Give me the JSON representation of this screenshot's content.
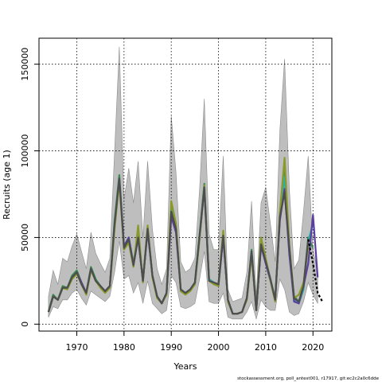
{
  "chart_data": {
    "type": "line",
    "xlabel": "Years",
    "ylabel": "Recruits (age 1)",
    "xlim": [
      1962,
      2024
    ],
    "ylim": [
      -4000,
      165000
    ],
    "x_ticks": [
      1970,
      1980,
      1990,
      2000,
      2010,
      2020
    ],
    "x_tick_labels": [
      "1970",
      "1980",
      "1990",
      "2000",
      "2010",
      "2020"
    ],
    "y_ticks": [
      0,
      50000,
      100000,
      150000
    ],
    "y_tick_labels": [
      "0",
      "50000",
      "100000",
      "150000"
    ],
    "grid": true,
    "grid_style": "dotted",
    "legend": "none",
    "footer": "stockassessment.org, poll_antest001, r17917, git:ec2c2a0c6dde",
    "colors": {
      "band": "#bebebe",
      "band_edge": "#8c8c8c",
      "series": [
        "#3a8c4e",
        "#2ab0a8",
        "#5a3fa0",
        "#8a9a2a",
        "#4d4d4d"
      ]
    },
    "years": [
      1964,
      1965,
      1966,
      1967,
      1968,
      1969,
      1970,
      1971,
      1972,
      1973,
      1974,
      1975,
      1976,
      1977,
      1978,
      1979,
      1980,
      1981,
      1982,
      1983,
      1984,
      1985,
      1986,
      1987,
      1988,
      1989,
      1990,
      1991,
      1992,
      1993,
      1994,
      1995,
      1996,
      1997,
      1998,
      1999,
      2000,
      2001,
      2002,
      2003,
      2004,
      2005,
      2006,
      2007,
      2008,
      2009,
      2010,
      2011,
      2012,
      2013,
      2014,
      2015,
      2016,
      2017,
      2018,
      2019,
      2020,
      2021
    ],
    "ci_lower": [
      4000,
      10000,
      9000,
      14000,
      14000,
      18000,
      20000,
      15000,
      11000,
      19000,
      17000,
      15000,
      13000,
      16000,
      30000,
      48000,
      26000,
      28000,
      18000,
      24000,
      12000,
      25000,
      12000,
      9000,
      6000,
      8000,
      28000,
      24000,
      10000,
      9000,
      10000,
      12000,
      26000,
      42000,
      13000,
      12000,
      12000,
      18000,
      4000,
      3000,
      3000,
      3000,
      7000,
      13000,
      3000,
      14000,
      10000,
      8000,
      8000,
      26000,
      20000,
      7000,
      5000,
      6000,
      13000,
      24000,
      17000,
      12000
    ],
    "ci_upper": [
      16000,
      31000,
      23000,
      38000,
      36000,
      45000,
      52000,
      42000,
      32000,
      53000,
      41000,
      35000,
      30000,
      38000,
      100000,
      160000,
      72000,
      90000,
      70000,
      94000,
      50000,
      94000,
      55000,
      32000,
      23000,
      32000,
      120000,
      88000,
      36000,
      30000,
      32000,
      38000,
      78000,
      130000,
      52000,
      43000,
      43000,
      97000,
      20000,
      13000,
      14000,
      15000,
      30000,
      71000,
      16000,
      70000,
      79000,
      58000,
      36000,
      112000,
      153000,
      78000,
      32000,
      37000,
      65000,
      97000,
      43000,
      30000
    ],
    "series": [
      {
        "x": [
          1964,
          1965,
          1966,
          1967,
          1968,
          1969,
          1970,
          1971,
          1972,
          1973,
          1974,
          1975,
          1976,
          1977,
          1978,
          1979,
          1980,
          1981,
          1982,
          1983,
          1984,
          1985,
          1986,
          1987,
          1988,
          1989,
          1990,
          1991,
          1992,
          1993,
          1994,
          1995,
          1996,
          1997,
          1998,
          1999,
          2000,
          2001,
          2002,
          2003,
          2004,
          2005,
          2006,
          2007,
          2008,
          2009,
          2010,
          2011,
          2012,
          2013,
          2014,
          2015,
          2016,
          2017,
          2018,
          2019,
          2020
        ],
        "values": [
          7000,
          17000,
          14000,
          22000,
          21000,
          28000,
          31000,
          24000,
          18000,
          33000,
          26000,
          22000,
          19000,
          22000,
          60000,
          86000,
          45000,
          50000,
          35000,
          52000,
          25000,
          56000,
          28000,
          16000,
          12000,
          18000,
          68000,
          57000,
          20000,
          18000,
          20000,
          24000,
          52000,
          81000,
          26000,
          24000,
          23000,
          52000,
          14000,
          6000,
          6000,
          7000,
          15000,
          43000,
          8000,
          47000,
          37000,
          26000,
          14000,
          63000,
          88000,
          42000,
          16000,
          13000,
          22000,
          50000,
          44000
        ]
      },
      {
        "x": [
          1964,
          1965,
          1966,
          1967,
          1968,
          1969,
          1970,
          1971,
          1972,
          1973,
          1974,
          1975,
          1976,
          1977,
          1978,
          1979,
          1980,
          1981,
          1982,
          1983,
          1984,
          1985,
          1986,
          1987,
          1988,
          1989,
          1990,
          1991,
          1992,
          1993,
          1994,
          1995,
          1996,
          1997,
          1998,
          1999,
          2000,
          2001,
          2002,
          2003,
          2004,
          2005,
          2006,
          2007,
          2008,
          2009,
          2010,
          2011,
          2012,
          2013,
          2014,
          2015,
          2016,
          2017,
          2018,
          2019,
          2020
        ],
        "values": [
          7000,
          16000,
          14000,
          21000,
          21000,
          27000,
          30000,
          24000,
          18000,
          32000,
          25000,
          22000,
          19000,
          22000,
          58000,
          84000,
          45000,
          49000,
          35000,
          51000,
          25000,
          55000,
          28000,
          16000,
          12000,
          18000,
          66000,
          56000,
          20000,
          18000,
          20000,
          24000,
          51000,
          80000,
          26000,
          24000,
          23000,
          51000,
          14000,
          6000,
          6000,
          7000,
          15000,
          42000,
          8000,
          46000,
          36000,
          26000,
          14000,
          62000,
          85000,
          42000,
          14000,
          12000,
          20000,
          48000,
          58000
        ]
      },
      {
        "x": [
          1964,
          1965,
          1966,
          1967,
          1968,
          1969,
          1970,
          1971,
          1972,
          1973,
          1974,
          1975,
          1976,
          1977,
          1978,
          1979,
          1980,
          1981,
          1982,
          1983,
          1984,
          1985,
          1986,
          1987,
          1988,
          1989,
          1990,
          1991,
          1992,
          1993,
          1994,
          1995,
          1996,
          1997,
          1998,
          1999,
          2000,
          2001,
          2002,
          2003,
          2004,
          2005,
          2006,
          2007,
          2008,
          2009,
          2010,
          2011,
          2012,
          2013,
          2014,
          2015,
          2016,
          2017,
          2018,
          2019,
          2020,
          2021
        ],
        "values": [
          7000,
          16000,
          14000,
          21000,
          21000,
          27000,
          30000,
          24000,
          18000,
          32000,
          25000,
          22000,
          19000,
          22000,
          57000,
          84000,
          45000,
          50000,
          34000,
          50000,
          25000,
          54000,
          28000,
          16000,
          12000,
          18000,
          62000,
          53000,
          20000,
          18000,
          20000,
          23000,
          50000,
          78000,
          25000,
          24000,
          22000,
          50000,
          14000,
          6000,
          6000,
          7000,
          15000,
          41000,
          8000,
          45000,
          35000,
          25000,
          14000,
          60000,
          78000,
          40000,
          13000,
          12000,
          22000,
          35000,
          63000,
          27000
        ]
      },
      {
        "x": [
          1964,
          1965,
          1966,
          1967,
          1968,
          1969,
          1970,
          1971,
          1972,
          1973,
          1974,
          1975,
          1976,
          1977,
          1978,
          1979,
          1980,
          1981,
          1982,
          1983,
          1984,
          1985,
          1986,
          1987,
          1988,
          1989,
          1990,
          1991,
          1992,
          1993,
          1994,
          1995,
          1996,
          1997,
          1998,
          1999,
          2000,
          2001,
          2002,
          2003,
          2004,
          2005,
          2006,
          2007,
          2008,
          2009,
          2010,
          2011,
          2012,
          2013,
          2014,
          2015,
          2016,
          2017,
          2018,
          2019
        ],
        "values": [
          7000,
          16000,
          14000,
          21000,
          20000,
          26000,
          29000,
          23000,
          17000,
          31000,
          25000,
          21000,
          18000,
          21000,
          55000,
          82000,
          43000,
          47000,
          33000,
          57000,
          24000,
          57000,
          27000,
          15000,
          12000,
          17000,
          71000,
          58000,
          19000,
          17000,
          19000,
          23000,
          49000,
          80000,
          25000,
          23000,
          22000,
          54000,
          13000,
          6000,
          6000,
          7000,
          14000,
          40000,
          8000,
          50000,
          38000,
          25000,
          13000,
          65000,
          96000,
          45000,
          15000,
          17000,
          24000,
          45000
        ]
      },
      {
        "x": [
          1964,
          1965,
          1966,
          1967,
          1968,
          1969,
          1970,
          1971,
          1972,
          1973,
          1974,
          1975,
          1976,
          1977,
          1978,
          1979,
          1980,
          1981,
          1982,
          1983,
          1984,
          1985,
          1986,
          1987,
          1988,
          1989,
          1990,
          1991,
          1992,
          1993,
          1994,
          1995,
          1996,
          1997,
          1998,
          1999,
          2000,
          2001,
          2002,
          2003,
          2004,
          2005,
          2006,
          2007,
          2008,
          2009,
          2010,
          2011,
          2012,
          2013,
          2014,
          2015,
          2016,
          2017,
          2018,
          2019,
          2020,
          2021,
          2022
        ],
        "dashed_from": 2019,
        "values": [
          7000,
          16000,
          14000,
          21000,
          21000,
          27000,
          30000,
          23000,
          18000,
          32000,
          25000,
          22000,
          19000,
          22000,
          58000,
          84000,
          44000,
          49000,
          34000,
          50000,
          25000,
          55000,
          28000,
          16000,
          12000,
          18000,
          65000,
          55000,
          20000,
          18000,
          20000,
          24000,
          51000,
          79000,
          25000,
          24000,
          23000,
          51000,
          14000,
          6000,
          6000,
          7000,
          15000,
          42000,
          8000,
          46000,
          36000,
          26000,
          14000,
          62000,
          76000,
          44000,
          15000,
          13000,
          22000,
          49000,
          35000,
          18000,
          13000
        ]
      }
    ]
  }
}
